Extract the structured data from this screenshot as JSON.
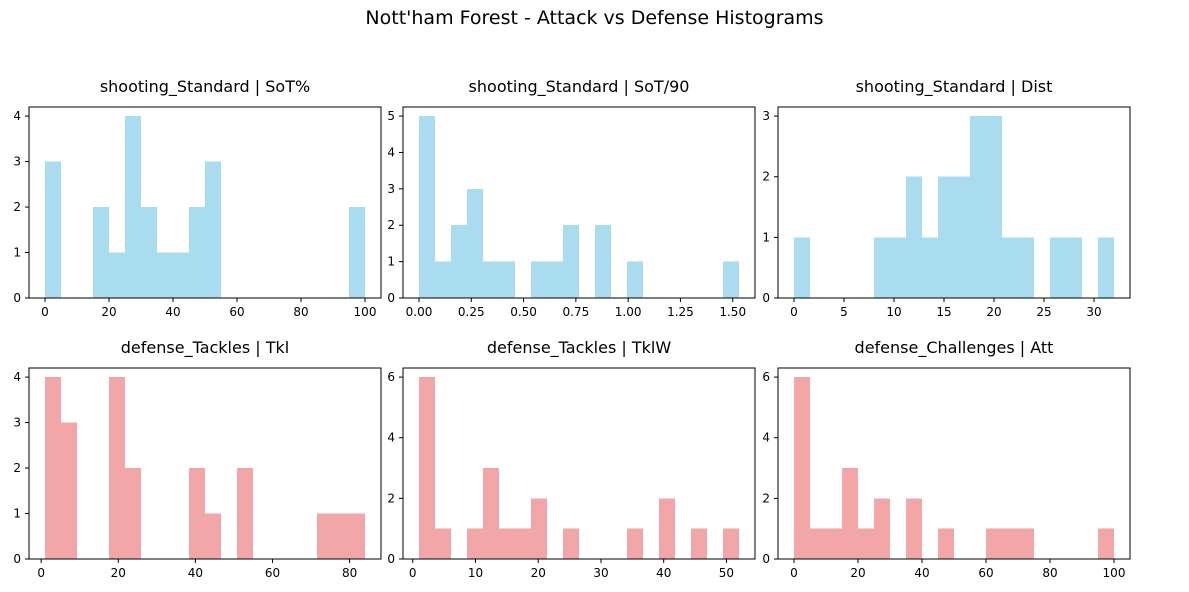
{
  "figure": {
    "title": "Nott'ham Forest - Attack vs Defense Histograms"
  },
  "colors": {
    "attack": "#a8dcee",
    "defense": "#f3a6a7",
    "axis": "#000000"
  },
  "chart_data": [
    {
      "type": "bar",
      "group": "attack",
      "title": "shooting_Standard | SoT%",
      "bin_edges": [
        0,
        5,
        10,
        15,
        20,
        25,
        30,
        35,
        40,
        45,
        50,
        55,
        60,
        65,
        70,
        75,
        80,
        85,
        90,
        95,
        100
      ],
      "counts": [
        3,
        0,
        0,
        2,
        1,
        4,
        2,
        1,
        1,
        2,
        3,
        0,
        0,
        0,
        0,
        0,
        0,
        0,
        0,
        2
      ],
      "xlim": [
        -5,
        105
      ],
      "ylim": [
        0,
        4.2
      ],
      "xticks": [
        0,
        20,
        40,
        60,
        80,
        100
      ],
      "xticklabels": [
        "0",
        "20",
        "40",
        "60",
        "80",
        "100"
      ],
      "yticks": [
        0,
        1,
        2,
        3,
        4
      ],
      "yticklabels": [
        "0",
        "1",
        "2",
        "3",
        "4"
      ]
    },
    {
      "type": "bar",
      "group": "attack",
      "title": "shooting_Standard | SoT/90",
      "bin_edges": [
        0,
        0.0765,
        0.153,
        0.2295,
        0.306,
        0.3825,
        0.459,
        0.5355,
        0.612,
        0.6885,
        0.765,
        0.8415,
        0.918,
        0.9945,
        1.071,
        1.1475,
        1.224,
        1.3005,
        1.377,
        1.4535,
        1.53
      ],
      "counts": [
        5,
        1,
        2,
        3,
        1,
        1,
        0,
        1,
        1,
        2,
        0,
        2,
        0,
        1,
        0,
        0,
        0,
        0,
        0,
        1
      ],
      "xlim": [
        -0.0765,
        1.6065
      ],
      "ylim": [
        0,
        5.25
      ],
      "xticks": [
        0,
        0.25,
        0.5,
        0.75,
        1,
        1.25,
        1.5
      ],
      "xticklabels": [
        "0.00",
        "0.25",
        "0.50",
        "0.75",
        "1.00",
        "1.25",
        "1.50"
      ],
      "yticks": [
        0,
        1,
        2,
        3,
        4,
        5
      ],
      "yticklabels": [
        "0",
        "1",
        "2",
        "3",
        "4",
        "5"
      ]
    },
    {
      "type": "bar",
      "group": "attack",
      "title": "shooting_Standard | Dist",
      "bin_edges": [
        0,
        1.6,
        3.2,
        4.8,
        6.4,
        8,
        9.6,
        11.2,
        12.8,
        14.4,
        16,
        17.6,
        19.2,
        20.8,
        22.4,
        24,
        25.6,
        27.2,
        28.8,
        30.4,
        32
      ],
      "counts": [
        1,
        0,
        0,
        0,
        0,
        1,
        1,
        2,
        1,
        2,
        2,
        3,
        3,
        1,
        1,
        0,
        1,
        1,
        0,
        1
      ],
      "xlim": [
        -1.6,
        33.6
      ],
      "ylim": [
        0,
        3.15
      ],
      "xticks": [
        0,
        5,
        10,
        15,
        20,
        25,
        30
      ],
      "xticklabels": [
        "0",
        "5",
        "10",
        "15",
        "20",
        "25",
        "30"
      ],
      "yticks": [
        0,
        1,
        2,
        3
      ],
      "yticklabels": [
        "0",
        "1",
        "2",
        "3"
      ]
    },
    {
      "type": "bar",
      "group": "defense",
      "title": "defense_Tackles | Tkl",
      "bin_edges": [
        1,
        5.15,
        9.3,
        13.45,
        17.6,
        21.75,
        25.9,
        30.05,
        34.2,
        38.35,
        42.5,
        46.65,
        50.8,
        54.95,
        59.1,
        63.25,
        67.4,
        71.55,
        75.7,
        79.85,
        84
      ],
      "counts": [
        4,
        3,
        0,
        0,
        4,
        2,
        0,
        0,
        0,
        2,
        1,
        0,
        2,
        0,
        0,
        0,
        0,
        1,
        1,
        1
      ],
      "xlim": [
        -3.15,
        88.15
      ],
      "ylim": [
        0,
        4.2
      ],
      "xticks": [
        0,
        20,
        40,
        60,
        80
      ],
      "xticklabels": [
        "0",
        "20",
        "40",
        "60",
        "80"
      ],
      "yticks": [
        0,
        1,
        2,
        3,
        4
      ],
      "yticklabels": [
        "0",
        "1",
        "2",
        "3",
        "4"
      ]
    },
    {
      "type": "bar",
      "group": "defense",
      "title": "defense_Tackles | TklW",
      "bin_edges": [
        1,
        3.55,
        6.1,
        8.65,
        11.2,
        13.75,
        16.3,
        18.85,
        21.4,
        23.95,
        26.5,
        29.05,
        31.6,
        34.15,
        36.7,
        39.25,
        41.8,
        44.35,
        46.9,
        49.45,
        52
      ],
      "counts": [
        6,
        1,
        0,
        1,
        3,
        1,
        1,
        2,
        0,
        1,
        0,
        0,
        0,
        1,
        0,
        2,
        0,
        1,
        0,
        1
      ],
      "xlim": [
        -1.55,
        54.55
      ],
      "ylim": [
        0,
        6.3
      ],
      "xticks": [
        0,
        10,
        20,
        30,
        40,
        50
      ],
      "xticklabels": [
        "0",
        "10",
        "20",
        "30",
        "40",
        "50"
      ],
      "yticks": [
        0,
        2,
        4,
        6
      ],
      "yticklabels": [
        "0",
        "2",
        "4",
        "6"
      ]
    },
    {
      "type": "bar",
      "group": "defense",
      "title": "defense_Challenges | Att",
      "bin_edges": [
        0,
        5,
        10,
        15,
        20,
        25,
        30,
        35,
        40,
        45,
        50,
        55,
        60,
        65,
        70,
        75,
        80,
        85,
        90,
        95,
        100
      ],
      "counts": [
        6,
        1,
        1,
        3,
        1,
        2,
        0,
        2,
        0,
        1,
        0,
        0,
        1,
        1,
        1,
        0,
        0,
        0,
        0,
        1
      ],
      "xlim": [
        -5,
        105
      ],
      "ylim": [
        0,
        6.3
      ],
      "xticks": [
        0,
        20,
        40,
        60,
        80,
        100
      ],
      "xticklabels": [
        "0",
        "20",
        "40",
        "60",
        "80",
        "100"
      ],
      "yticks": [
        0,
        2,
        4,
        6
      ],
      "yticklabels": [
        "0",
        "2",
        "4",
        "6"
      ]
    }
  ]
}
